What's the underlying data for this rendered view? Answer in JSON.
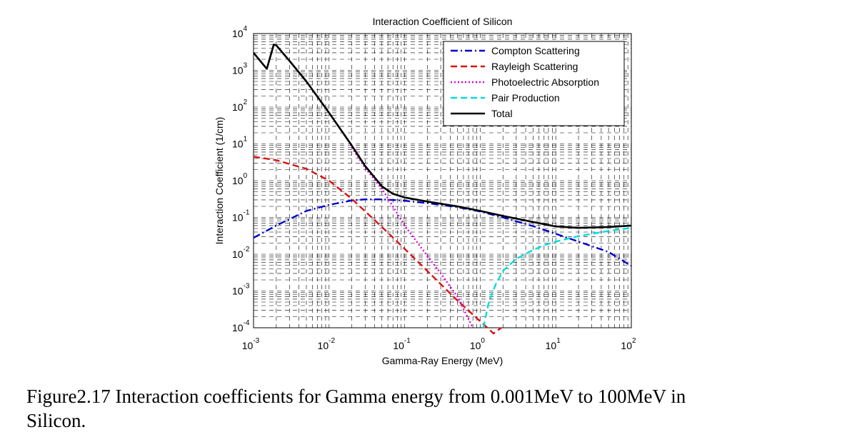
{
  "chart_data": {
    "type": "line",
    "title": "Interaction Coefficient of Silicon",
    "xlabel": "Gamma-Ray Energy (MeV)",
    "ylabel": "Interaction Coefficient (1/cm)",
    "xscale": "log",
    "yscale": "log",
    "xlim": [
      0.001,
      100
    ],
    "ylim": [
      0.0001,
      10000
    ],
    "xticks": [
      {
        "base": "10",
        "exp": "-3"
      },
      {
        "base": "10",
        "exp": "-2"
      },
      {
        "base": "10",
        "exp": "-1"
      },
      {
        "base": "10",
        "exp": "0"
      },
      {
        "base": "10",
        "exp": "1"
      },
      {
        "base": "10",
        "exp": "2"
      }
    ],
    "yticks": [
      {
        "base": "10",
        "exp": "-4"
      },
      {
        "base": "10",
        "exp": "-3"
      },
      {
        "base": "10",
        "exp": "-2"
      },
      {
        "base": "10",
        "exp": "-1"
      },
      {
        "base": "10",
        "exp": "0"
      },
      {
        "base": "10",
        "exp": "1"
      },
      {
        "base": "10",
        "exp": "2"
      },
      {
        "base": "10",
        "exp": "3"
      },
      {
        "base": "10",
        "exp": "4"
      }
    ],
    "grid": true,
    "legend_position": "top-right",
    "series": [
      {
        "name": "Compton Scattering",
        "color": "#0000cc",
        "dash": "dashdot",
        "x": [
          0.001,
          0.002,
          0.005,
          0.01,
          0.02,
          0.03,
          0.05,
          0.1,
          0.2,
          0.5,
          1,
          2,
          5,
          10,
          20,
          50,
          100
        ],
        "y": [
          0.028,
          0.06,
          0.15,
          0.22,
          0.29,
          0.31,
          0.31,
          0.285,
          0.245,
          0.19,
          0.145,
          0.1,
          0.058,
          0.036,
          0.022,
          0.0115,
          0.0048
        ]
      },
      {
        "name": "Rayleigh Scattering",
        "color": "#dd1111",
        "dash": "dashed",
        "x": [
          0.001,
          0.002,
          0.005,
          0.01,
          0.02,
          0.05,
          0.1,
          0.2,
          0.5,
          1,
          1.5,
          1.9
        ],
        "y": [
          4.5,
          3.6,
          2.1,
          1.0,
          0.32,
          0.055,
          0.014,
          0.0035,
          0.00055,
          0.00015,
          7e-05,
          0.0001
        ]
      },
      {
        "name": "Photoelectric Absorption",
        "color": "#dd00dd",
        "dash": "dotted",
        "x": [
          0.02,
          0.03,
          0.05,
          0.07,
          0.1,
          0.2,
          0.3,
          0.5,
          0.8
        ],
        "y": [
          8.0,
          2.2,
          0.6,
          0.2,
          0.06,
          0.009,
          0.003,
          0.0007,
          0.0001
        ]
      },
      {
        "name": "Pair Production",
        "color": "#00dddd",
        "dash": "dashed",
        "x": [
          1.1,
          1.3,
          1.6,
          2,
          3,
          5,
          7,
          10,
          20,
          50,
          100
        ],
        "y": [
          0.0001,
          0.0005,
          0.0015,
          0.0035,
          0.0075,
          0.013,
          0.0175,
          0.022,
          0.031,
          0.043,
          0.052
        ]
      },
      {
        "name": "Total",
        "color": "#000000",
        "dash": "solid",
        "x": [
          0.001,
          0.0015,
          0.00185,
          0.002,
          0.003,
          0.005,
          0.01,
          0.02,
          0.03,
          0.05,
          0.07,
          0.1,
          0.2,
          0.5,
          1,
          2,
          5,
          10,
          20,
          50,
          100
        ],
        "y": [
          3000,
          1100,
          5000,
          4800,
          1800,
          500,
          70,
          9.0,
          2.5,
          0.7,
          0.44,
          0.35,
          0.27,
          0.2,
          0.15,
          0.11,
          0.075,
          0.057,
          0.052,
          0.055,
          0.06
        ]
      }
    ]
  },
  "caption": {
    "line1": "Figure2.17 Interaction coefficients for Gamma energy from 0.001MeV to 100MeV in",
    "line2": "Silicon."
  }
}
